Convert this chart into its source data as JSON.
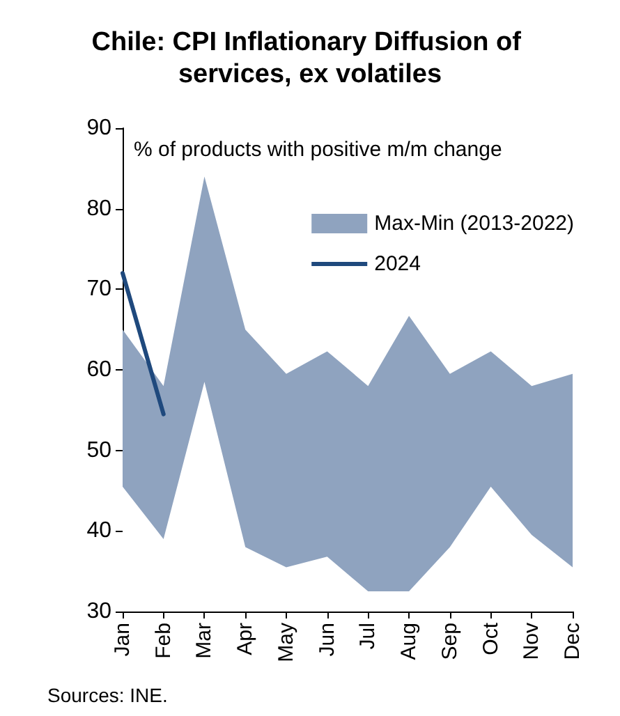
{
  "chart_data": {
    "type": "area",
    "title": "Chile: CPI Inflationary Diffusion of services, ex volatiles",
    "categories": [
      "Jan",
      "Feb",
      "Mar",
      "Apr",
      "May",
      "Jun",
      "Jul",
      "Aug",
      "Sep",
      "Oct",
      "Nov",
      "Dec"
    ],
    "series": [
      {
        "name": "Max-Min (2013-2022)",
        "color": "#8fa3bf",
        "values": [
          65,
          58,
          84,
          65,
          59.5,
          62.3,
          58,
          66.7,
          59.5,
          62.3,
          58,
          59.5
        ]
      },
      {
        "color": "#ffffff",
        "values": [
          45.5,
          39,
          58.5,
          38,
          35.5,
          36.8,
          32.5,
          32.5,
          38,
          45.5,
          39.5,
          35.5
        ]
      },
      {
        "name": "2024",
        "type": "line",
        "color": "#1f497d",
        "values": [
          72,
          54.5,
          null,
          null,
          null,
          null,
          null,
          null,
          null,
          null,
          null,
          null
        ]
      }
    ],
    "ylim": [
      30,
      90
    ],
    "yticks": [
      30,
      40,
      50,
      60,
      70,
      80,
      90
    ],
    "grid": false,
    "legend": "right",
    "marker": "none",
    "line_style": "solid",
    "annotations": [
      "% of products with positive m/m change",
      "Sources: INE."
    ]
  }
}
